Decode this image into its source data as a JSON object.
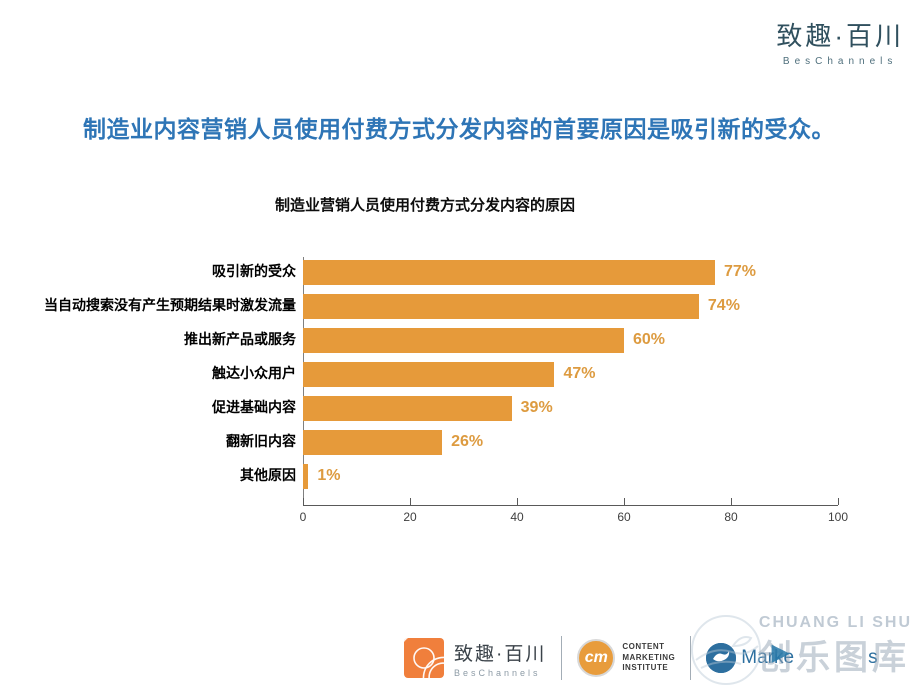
{
  "header": {
    "logo_cn": "致趣·百川",
    "logo_en": "BesChannels"
  },
  "title": "制造业内容营销人员使用付费方式分发内容的首要原因是吸引新的受众。",
  "chart_data": {
    "type": "bar",
    "orientation": "horizontal",
    "title": "制造业营销人员使用付费方式分发内容的原因",
    "categories": [
      "吸引新的受众",
      "当自动搜索没有产生预期结果时激发流量",
      "推出新产品或服务",
      "触达小众用户",
      "促进基础内容",
      "翻新旧内容",
      "其他原因"
    ],
    "values": [
      77,
      74,
      60,
      47,
      39,
      26,
      1
    ],
    "value_labels": [
      "77%",
      "74%",
      "60%",
      "47%",
      "39%",
      "26%",
      "1%"
    ],
    "xlim": [
      0,
      100
    ],
    "x_ticks": [
      0,
      20,
      40,
      60,
      80,
      100
    ],
    "grid": false,
    "legend": "none",
    "bar_color": "#E69A3A",
    "value_label_color": "#DD9B40",
    "axis_color": "#595959"
  },
  "colors": {
    "title_blue": "#2E75B6",
    "brand_teal": "#30505e",
    "footer_orange": "#F07F3C",
    "cmi_orange": "#E89C3C",
    "mp_blue": "#2D6F9F"
  },
  "footer": {
    "beschannels": {
      "cn": "致趣·百川",
      "en": "BesChannels"
    },
    "cmi": {
      "abbr": "cm",
      "line1": "CONTENT",
      "line2": "MARKETING",
      "line3": "INSTITUTE"
    },
    "marketingprofs": {
      "prefix": "Marke",
      "suffix": "s"
    },
    "watermark": {
      "line1": "CHUANG LI SHU",
      "line2": "创乐图库",
      "play_glyph": "▶"
    }
  }
}
